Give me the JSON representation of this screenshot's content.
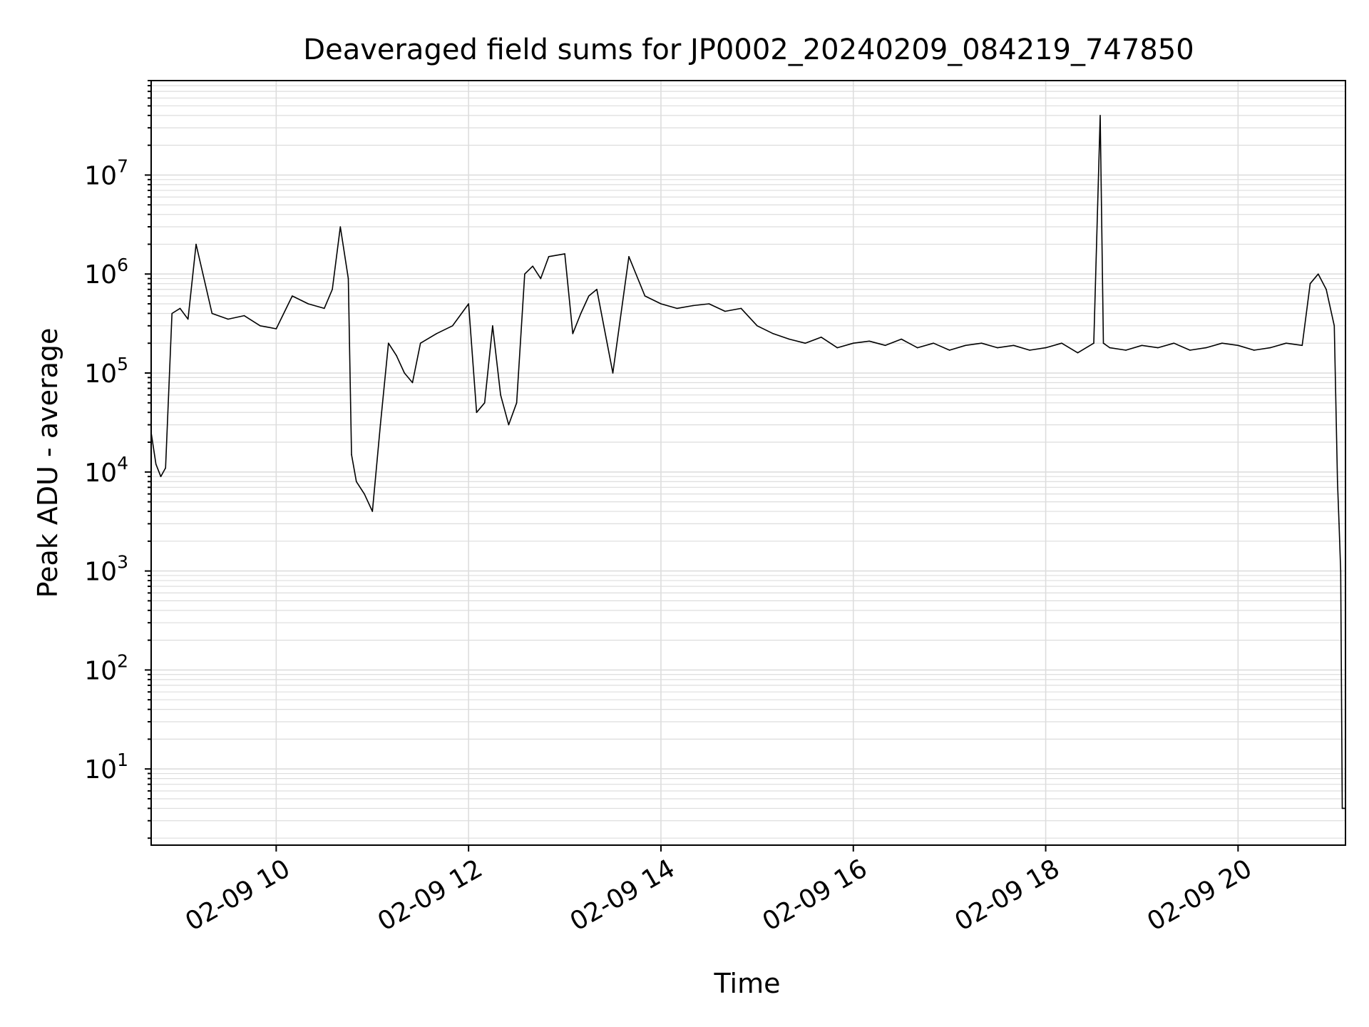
{
  "chart_data": {
    "type": "line",
    "title": "Deaveraged field sums for JP0002_20240209_084219_747850",
    "xlabel": "Time",
    "ylabel": "Peak ADU - average",
    "y_scale": "log",
    "grid": true,
    "legend": "none",
    "line_color": "#000000",
    "grid_color": "#dddddd",
    "xlim": [
      "02-09 08:42",
      "02-09 21:07"
    ],
    "ylim": [
      1.7,
      90000000
    ],
    "x_ticks": [
      {
        "t": "02-09 10:00",
        "label": "02-09 10"
      },
      {
        "t": "02-09 12:00",
        "label": "02-09 12"
      },
      {
        "t": "02-09 14:00",
        "label": "02-09 14"
      },
      {
        "t": "02-09 16:00",
        "label": "02-09 16"
      },
      {
        "t": "02-09 18:00",
        "label": "02-09 18"
      },
      {
        "t": "02-09 20:00",
        "label": "02-09 20"
      }
    ],
    "y_ticks": [
      {
        "value": 10,
        "base": "10",
        "exp": "1"
      },
      {
        "value": 100,
        "base": "10",
        "exp": "2"
      },
      {
        "value": 1000,
        "base": "10",
        "exp": "3"
      },
      {
        "value": 10000,
        "base": "10",
        "exp": "4"
      },
      {
        "value": 100000,
        "base": "10",
        "exp": "5"
      },
      {
        "value": 1000000,
        "base": "10",
        "exp": "6"
      },
      {
        "value": 10000000,
        "base": "10",
        "exp": "7"
      }
    ],
    "series": [
      {
        "x": [
          "02-09 08:42",
          "02-09 08:45",
          "02-09 08:48",
          "02-09 08:51",
          "02-09 08:55",
          "02-09 09:00",
          "02-09 09:05",
          "02-09 09:10",
          "02-09 09:20",
          "02-09 09:30",
          "02-09 09:40",
          "02-09 09:50",
          "02-09 10:00",
          "02-09 10:10",
          "02-09 10:20",
          "02-09 10:30",
          "02-09 10:35",
          "02-09 10:40",
          "02-09 10:45",
          "02-09 10:47",
          "02-09 10:50",
          "02-09 10:55",
          "02-09 11:00",
          "02-09 11:05",
          "02-09 11:10",
          "02-09 11:15",
          "02-09 11:20",
          "02-09 11:25",
          "02-09 11:30",
          "02-09 11:40",
          "02-09 11:50",
          "02-09 12:00",
          "02-09 12:05",
          "02-09 12:10",
          "02-09 12:15",
          "02-09 12:20",
          "02-09 12:25",
          "02-09 12:30",
          "02-09 12:35",
          "02-09 12:40",
          "02-09 12:45",
          "02-09 12:50",
          "02-09 13:00",
          "02-09 13:05",
          "02-09 13:10",
          "02-09 13:15",
          "02-09 13:20",
          "02-09 13:30",
          "02-09 13:40",
          "02-09 13:50",
          "02-09 14:00",
          "02-09 14:10",
          "02-09 14:20",
          "02-09 14:30",
          "02-09 14:40",
          "02-09 14:50",
          "02-09 15:00",
          "02-09 15:10",
          "02-09 15:20",
          "02-09 15:30",
          "02-09 15:40",
          "02-09 15:50",
          "02-09 16:00",
          "02-09 16:10",
          "02-09 16:20",
          "02-09 16:30",
          "02-09 16:40",
          "02-09 16:50",
          "02-09 17:00",
          "02-09 17:10",
          "02-09 17:20",
          "02-09 17:30",
          "02-09 17:40",
          "02-09 17:50",
          "02-09 18:00",
          "02-09 18:10",
          "02-09 18:20",
          "02-09 18:30",
          "02-09 18:34",
          "02-09 18:36",
          "02-09 18:40",
          "02-09 18:50",
          "02-09 19:00",
          "02-09 19:10",
          "02-09 19:20",
          "02-09 19:30",
          "02-09 19:40",
          "02-09 19:50",
          "02-09 20:00",
          "02-09 20:10",
          "02-09 20:20",
          "02-09 20:30",
          "02-09 20:40",
          "02-09 20:45",
          "02-09 20:50",
          "02-09 20:55",
          "02-09 21:00",
          "02-09 21:02",
          "02-09 21:03",
          "02-09 21:04",
          "02-09 21:05",
          "02-09 21:06",
          "02-09 21:07"
        ],
        "y": [
          25000,
          12000,
          9000,
          11000,
          400000,
          450000,
          350000,
          2000000,
          400000,
          350000,
          380000,
          300000,
          280000,
          600000,
          500000,
          450000,
          700000,
          3000000,
          900000,
          15000,
          8000,
          6000,
          4000,
          30000,
          200000,
          150000,
          100000,
          80000,
          200000,
          250000,
          300000,
          500000,
          40000,
          50000,
          300000,
          60000,
          30000,
          50000,
          1000000,
          1200000,
          900000,
          1500000,
          1600000,
          250000,
          400000,
          600000,
          700000,
          100000,
          1500000,
          600000,
          500000,
          450000,
          480000,
          500000,
          420000,
          450000,
          300000,
          250000,
          220000,
          200000,
          230000,
          180000,
          200000,
          210000,
          190000,
          220000,
          180000,
          200000,
          170000,
          190000,
          200000,
          180000,
          190000,
          170000,
          180000,
          200000,
          160000,
          200000,
          40000000,
          200000,
          180000,
          170000,
          190000,
          180000,
          200000,
          170000,
          180000,
          200000,
          190000,
          170000,
          180000,
          200000,
          190000,
          800000,
          1000000,
          700000,
          300000,
          8000,
          3000,
          1000,
          4,
          4,
          4
        ]
      }
    ]
  }
}
